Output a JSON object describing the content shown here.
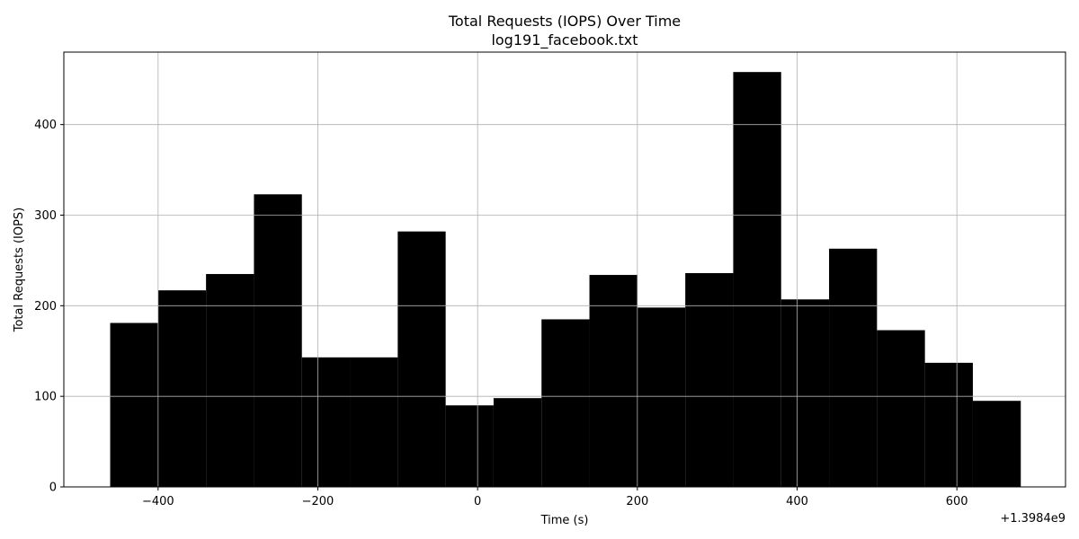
{
  "chart_data": {
    "type": "bar",
    "title": "Total Requests (IOPS) Over Time",
    "subtitle": "log191_facebook.txt",
    "xlabel": "Time (s)",
    "ylabel": "Total Requests (IOPS)",
    "x_offset_label": "+1.3984e9",
    "xlim": [
      -518,
      736
    ],
    "ylim": [
      0,
      480
    ],
    "grid": true,
    "bar_color": "#000000",
    "bins": [
      {
        "x0": -460,
        "x1": -400,
        "value": 181
      },
      {
        "x0": -400,
        "x1": -340,
        "value": 217
      },
      {
        "x0": -340,
        "x1": -280,
        "value": 235
      },
      {
        "x0": -280,
        "x1": -220,
        "value": 323
      },
      {
        "x0": -220,
        "x1": -160,
        "value": 143
      },
      {
        "x0": -160,
        "x1": -100,
        "value": 143
      },
      {
        "x0": -100,
        "x1": -40,
        "value": 282
      },
      {
        "x0": -40,
        "x1": 20,
        "value": 90
      },
      {
        "x0": 20,
        "x1": 80,
        "value": 98
      },
      {
        "x0": 80,
        "x1": 140,
        "value": 185
      },
      {
        "x0": 140,
        "x1": 200,
        "value": 234
      },
      {
        "x0": 200,
        "x1": 260,
        "value": 198
      },
      {
        "x0": 260,
        "x1": 320,
        "value": 236
      },
      {
        "x0": 320,
        "x1": 380,
        "value": 458
      },
      {
        "x0": 380,
        "x1": 440,
        "value": 207
      },
      {
        "x0": 440,
        "x1": 500,
        "value": 263
      },
      {
        "x0": 500,
        "x1": 560,
        "value": 173
      },
      {
        "x0": 560,
        "x1": 620,
        "value": 137
      },
      {
        "x0": 620,
        "x1": 680,
        "value": 95
      }
    ],
    "x_ticks": [
      {
        "value": -400,
        "label": "−400"
      },
      {
        "value": -200,
        "label": "−200"
      },
      {
        "value": 0,
        "label": "0"
      },
      {
        "value": 200,
        "label": "200"
      },
      {
        "value": 400,
        "label": "400"
      },
      {
        "value": 600,
        "label": "600"
      }
    ],
    "y_ticks": [
      {
        "value": 0,
        "label": "0"
      },
      {
        "value": 100,
        "label": "100"
      },
      {
        "value": 200,
        "label": "200"
      },
      {
        "value": 300,
        "label": "300"
      },
      {
        "value": 400,
        "label": "400"
      }
    ]
  }
}
